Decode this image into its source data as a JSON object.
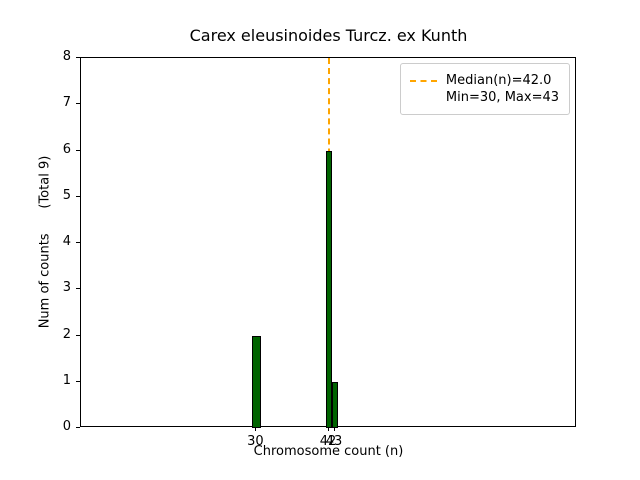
{
  "chart_data": {
    "type": "bar",
    "title": "Carex eleusinoides Turcz. ex Kunth",
    "xlabel": "Chromosome count (n)",
    "ylabel": "Num of counts",
    "total_label": "(Total 9)",
    "ylabel_display": "Num of counts      (Total 9)",
    "total_counts": 9,
    "bars": [
      {
        "x": 30,
        "count": 2,
        "width": 1.6
      },
      {
        "x": 42,
        "count": 6,
        "width": 1.0
      },
      {
        "x": 43,
        "count": 1,
        "width": 1.0
      }
    ],
    "median": 42.0,
    "min": 30,
    "max": 43,
    "xlim": [
      1,
      83
    ],
    "ylim": [
      0,
      8
    ],
    "xticks": [
      30,
      42,
      43
    ],
    "yticks": [
      0,
      1,
      2,
      3,
      4,
      5,
      6,
      7,
      8
    ],
    "grid": false,
    "bar_color": "#006400",
    "bar_edge_color": "#000000",
    "median_line_color": "#ffa500",
    "legend_position": "upper right",
    "legend_labels": [
      "Median(n)=42.0",
      "Min=30, Max=43"
    ]
  }
}
